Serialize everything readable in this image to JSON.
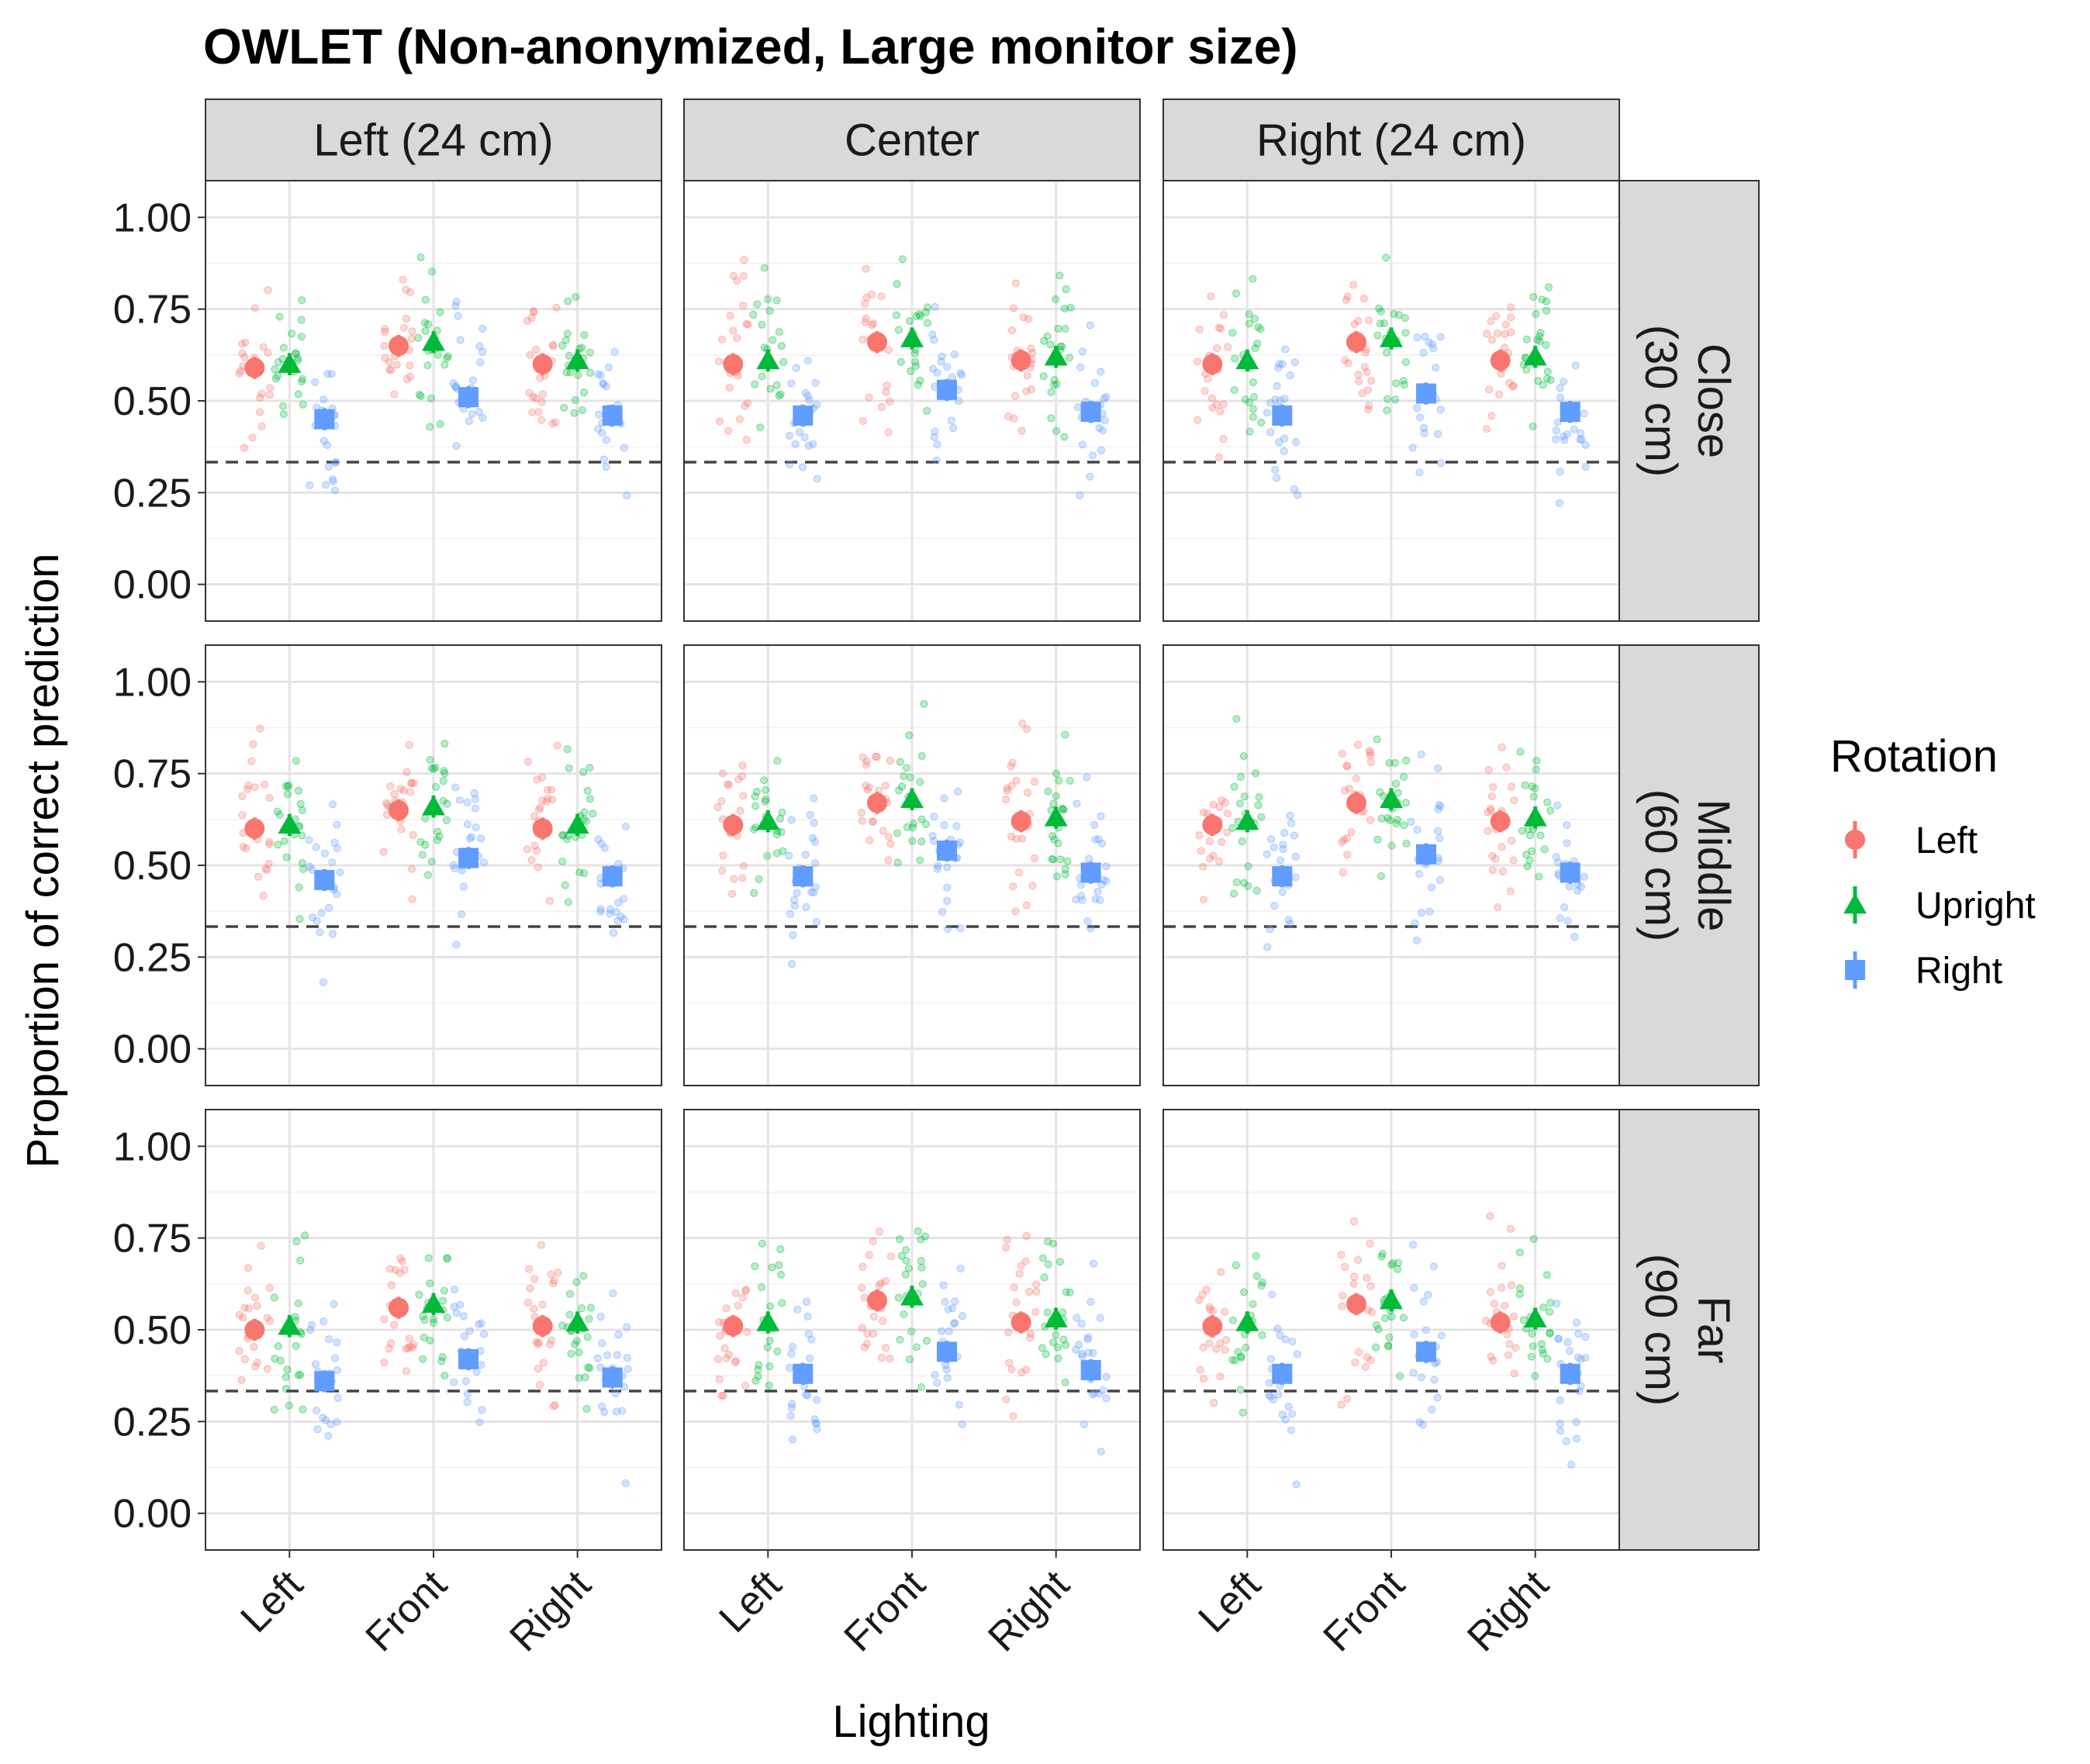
{
  "chart_data": {
    "type": "scatter",
    "title": "OWLET (Non-anonymized, Large monitor size)",
    "xlabel": "Lighting",
    "ylabel": "Proportion of correct prediction",
    "x_categories": [
      "Left",
      "Front",
      "Right"
    ],
    "ylim": [
      -0.1,
      1.1
    ],
    "yticks": [
      0.0,
      0.25,
      0.5,
      0.75,
      1.0
    ],
    "ytick_labels": [
      "0.00",
      "0.25",
      "0.50",
      "0.75",
      "1.00"
    ],
    "reference_line": {
      "y": 0.333,
      "style": "dashed"
    },
    "grid": true,
    "column_facets": [
      "Left (24 cm)",
      "Center",
      "Right (24 cm)"
    ],
    "row_facets": [
      [
        "Close",
        "(30 cm)"
      ],
      [
        "Middle",
        "(60 cm)"
      ],
      [
        "Far",
        "(90 cm)"
      ]
    ],
    "legend": {
      "title": "Rotation",
      "placement": "right",
      "entries": [
        {
          "name": "Left",
          "color": "#F8766D",
          "shape": "circle"
        },
        {
          "name": "Upright",
          "color": "#00BA38",
          "shape": "triangle"
        },
        {
          "name": "Right",
          "color": "#619CFF",
          "shape": "square"
        }
      ]
    },
    "means": [
      [
        [
          [
            0.59,
            0.6,
            0.45
          ],
          [
            0.65,
            0.66,
            0.51
          ],
          [
            0.6,
            0.61,
            0.46
          ]
        ],
        [
          [
            0.6,
            0.61,
            0.46
          ],
          [
            0.66,
            0.67,
            0.53
          ],
          [
            0.61,
            0.62,
            0.47
          ]
        ],
        [
          [
            0.6,
            0.61,
            0.46
          ],
          [
            0.66,
            0.67,
            0.52
          ],
          [
            0.61,
            0.62,
            0.47
          ]
        ]
      ],
      [
        [
          [
            0.6,
            0.61,
            0.46
          ],
          [
            0.65,
            0.66,
            0.52
          ],
          [
            0.6,
            0.61,
            0.47
          ]
        ],
        [
          [
            0.61,
            0.62,
            0.47
          ],
          [
            0.67,
            0.68,
            0.54
          ],
          [
            0.62,
            0.63,
            0.48
          ]
        ],
        [
          [
            0.61,
            0.62,
            0.47
          ],
          [
            0.67,
            0.68,
            0.53
          ],
          [
            0.62,
            0.63,
            0.48
          ]
        ]
      ],
      [
        [
          [
            0.5,
            0.51,
            0.36
          ],
          [
            0.56,
            0.57,
            0.42
          ],
          [
            0.51,
            0.52,
            0.37
          ]
        ],
        [
          [
            0.51,
            0.52,
            0.38
          ],
          [
            0.58,
            0.59,
            0.44
          ],
          [
            0.52,
            0.53,
            0.39
          ]
        ],
        [
          [
            0.51,
            0.52,
            0.38
          ],
          [
            0.57,
            0.58,
            0.44
          ],
          [
            0.52,
            0.53,
            0.38
          ]
        ]
      ]
    ]
  }
}
